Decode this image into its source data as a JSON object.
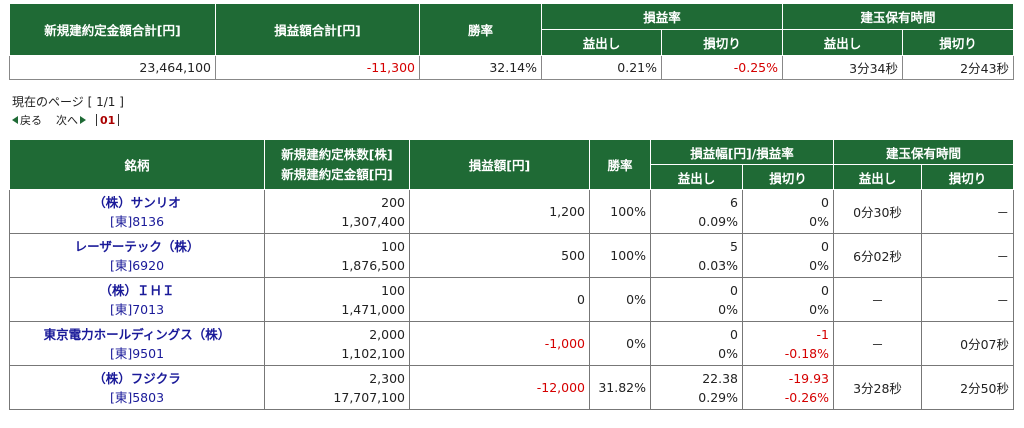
{
  "summary": {
    "headers": {
      "total_amount": "新規建約定金額合計[円]",
      "total_pl": "損益額合計[円]",
      "win_rate": "勝率",
      "pl_rate": "損益率",
      "holding_time": "建玉保有時間",
      "profit": "益出し",
      "loss": "損切り"
    },
    "values": {
      "total_amount": "23,464,100",
      "total_pl": "-11,300",
      "win_rate": "32.14%",
      "pl_rate_profit": "0.21%",
      "pl_rate_loss": "-0.25%",
      "hold_profit": "3分34秒",
      "hold_loss": "2分43秒"
    }
  },
  "pager": {
    "current_page": "現在のページ [ 1/1 ]",
    "prev": "戻る",
    "next": "次へ",
    "page": "01"
  },
  "detail": {
    "headers": {
      "stock": "銘柄",
      "qty": "新規建約定株数[株]",
      "amount": "新規建約定金額[円]",
      "pl": "損益額[円]",
      "win_rate": "勝率",
      "pl_width": "損益幅[円]/損益率",
      "holding_time": "建玉保有時間",
      "profit": "益出し",
      "loss": "損切り"
    },
    "rows": [
      {
        "name": "（株）サンリオ",
        "code": "[東]8136",
        "qty": "200",
        "amount": "1,307,400",
        "pl": "1,200",
        "win": "100%",
        "p_w": "6",
        "p_r": "0.09%",
        "l_w": "0",
        "l_r": "0%",
        "h_p": "0分30秒",
        "h_l": "－"
      },
      {
        "name": "レーザーテック（株）",
        "code": "[東]6920",
        "qty": "100",
        "amount": "1,876,500",
        "pl": "500",
        "win": "100%",
        "p_w": "5",
        "p_r": "0.03%",
        "l_w": "0",
        "l_r": "0%",
        "h_p": "6分02秒",
        "h_l": "－"
      },
      {
        "name": "（株）ＩＨＩ",
        "code": "[東]7013",
        "qty": "100",
        "amount": "1,471,000",
        "pl": "0",
        "win": "0%",
        "p_w": "0",
        "p_r": "0%",
        "l_w": "0",
        "l_r": "0%",
        "h_p": "－",
        "h_l": "－"
      },
      {
        "name": "東京電力ホールディングス（株）",
        "code": "[東]9501",
        "qty": "2,000",
        "amount": "1,102,100",
        "pl": "-1,000",
        "win": "0%",
        "p_w": "0",
        "p_r": "0%",
        "l_w": "-1",
        "l_r": "-0.18%",
        "h_p": "－",
        "h_l": "0分07秒"
      },
      {
        "name": "（株）フジクラ",
        "code": "[東]5803",
        "qty": "2,300",
        "amount": "17,707,100",
        "pl": "-12,000",
        "win": "31.82%",
        "p_w": "22.38",
        "p_r": "0.29%",
        "l_w": "-19.93",
        "l_r": "-0.26%",
        "h_p": "3分28秒",
        "h_l": "2分50秒"
      }
    ]
  },
  "colors": {
    "header_bg": "#1f6a35",
    "negative": "#d50000",
    "link": "#1a1a99"
  }
}
